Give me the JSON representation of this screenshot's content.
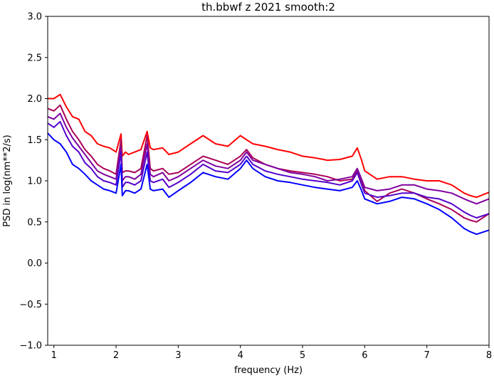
{
  "chart_data": {
    "type": "line",
    "title": "th.bbwf z 2021 smooth:2",
    "xlabel": "frequency (Hz)",
    "ylabel": "PSD in log(nm**2/s)",
    "xlim": [
      0.9,
      8.0
    ],
    "ylim": [
      -1.0,
      3.0
    ],
    "x_ticks": [
      1,
      2,
      3,
      4,
      5,
      6,
      7,
      8
    ],
    "y_ticks": [
      -1.0,
      -0.5,
      0.0,
      0.5,
      1.0,
      1.5,
      2.0,
      2.5,
      3.0
    ],
    "x_tick_labels": [
      "1",
      "2",
      "3",
      "4",
      "5",
      "6",
      "7",
      "8"
    ],
    "y_tick_labels": [
      "−1.0",
      "−0.5",
      "0.0",
      "0.5",
      "1.0",
      "1.5",
      "2.0",
      "2.5",
      "3.0"
    ],
    "grid": false,
    "legend": "none",
    "series": [
      {
        "color": "#ff0000",
        "x": [
          0.9,
          1.0,
          1.1,
          1.2,
          1.3,
          1.4,
          1.5,
          1.6,
          1.7,
          1.8,
          1.9,
          2.0,
          2.08,
          2.1,
          2.15,
          2.2,
          2.3,
          2.4,
          2.5,
          2.55,
          2.6,
          2.75,
          2.85,
          3.0,
          3.2,
          3.4,
          3.6,
          3.8,
          4.0,
          4.1,
          4.2,
          4.4,
          4.6,
          4.8,
          5.0,
          5.2,
          5.4,
          5.6,
          5.8,
          5.88,
          5.95,
          6.0,
          6.2,
          6.4,
          6.6,
          6.8,
          7.0,
          7.2,
          7.4,
          7.6,
          7.7,
          7.8,
          8.0
        ],
        "y": [
          2.0,
          2.0,
          2.05,
          1.9,
          1.78,
          1.75,
          1.6,
          1.55,
          1.45,
          1.42,
          1.4,
          1.35,
          1.57,
          1.3,
          1.35,
          1.32,
          1.35,
          1.38,
          1.6,
          1.4,
          1.38,
          1.4,
          1.32,
          1.35,
          1.45,
          1.55,
          1.45,
          1.42,
          1.55,
          1.5,
          1.45,
          1.42,
          1.38,
          1.35,
          1.3,
          1.28,
          1.25,
          1.26,
          1.3,
          1.4,
          1.25,
          1.12,
          1.02,
          1.05,
          1.05,
          1.02,
          1.0,
          1.0,
          0.95,
          0.85,
          0.82,
          0.8,
          0.86
        ]
      },
      {
        "color": "#aa0055",
        "x": [
          0.9,
          1.0,
          1.1,
          1.2,
          1.3,
          1.4,
          1.5,
          1.6,
          1.7,
          1.8,
          1.9,
          2.0,
          2.08,
          2.1,
          2.15,
          2.2,
          2.3,
          2.4,
          2.5,
          2.55,
          2.6,
          2.75,
          2.85,
          3.0,
          3.2,
          3.4,
          3.6,
          3.8,
          4.0,
          4.1,
          4.2,
          4.4,
          4.6,
          4.8,
          5.0,
          5.2,
          5.4,
          5.6,
          5.8,
          5.88,
          5.95,
          6.0,
          6.2,
          6.4,
          6.6,
          6.8,
          7.0,
          7.2,
          7.4,
          7.6,
          7.7,
          7.8,
          8.0
        ],
        "y": [
          1.88,
          1.85,
          1.92,
          1.75,
          1.6,
          1.5,
          1.38,
          1.3,
          1.2,
          1.15,
          1.12,
          1.08,
          1.5,
          1.1,
          1.12,
          1.12,
          1.1,
          1.15,
          1.55,
          1.15,
          1.12,
          1.15,
          1.08,
          1.1,
          1.2,
          1.3,
          1.25,
          1.2,
          1.3,
          1.38,
          1.28,
          1.2,
          1.15,
          1.12,
          1.1,
          1.08,
          1.05,
          1.0,
          1.02,
          1.12,
          1.0,
          0.88,
          0.75,
          0.85,
          0.9,
          0.85,
          0.78,
          0.72,
          0.65,
          0.55,
          0.52,
          0.5,
          0.6
        ]
      },
      {
        "color": "#8000a0",
        "x": [
          0.9,
          1.0,
          1.1,
          1.2,
          1.3,
          1.4,
          1.5,
          1.6,
          1.7,
          1.8,
          1.9,
          2.0,
          2.08,
          2.1,
          2.15,
          2.2,
          2.3,
          2.4,
          2.5,
          2.55,
          2.6,
          2.75,
          2.85,
          3.0,
          3.2,
          3.4,
          3.6,
          3.8,
          4.0,
          4.1,
          4.2,
          4.4,
          4.6,
          4.8,
          5.0,
          5.2,
          5.4,
          5.6,
          5.8,
          5.88,
          5.95,
          6.0,
          6.2,
          6.4,
          6.6,
          6.8,
          7.0,
          7.2,
          7.4,
          7.6,
          7.7,
          7.8,
          8.0
        ],
        "y": [
          1.78,
          1.75,
          1.82,
          1.65,
          1.52,
          1.42,
          1.32,
          1.22,
          1.12,
          1.08,
          1.05,
          1.02,
          1.42,
          1.0,
          1.05,
          1.05,
          1.02,
          1.08,
          1.45,
          1.08,
          1.05,
          1.1,
          1.0,
          1.05,
          1.15,
          1.25,
          1.18,
          1.15,
          1.25,
          1.35,
          1.25,
          1.2,
          1.15,
          1.1,
          1.08,
          1.05,
          1.0,
          1.02,
          1.05,
          1.15,
          1.02,
          0.92,
          0.88,
          0.9,
          0.95,
          0.95,
          0.9,
          0.88,
          0.85,
          0.78,
          0.75,
          0.72,
          0.78
        ]
      },
      {
        "color": "#5500cc",
        "x": [
          0.9,
          1.0,
          1.1,
          1.2,
          1.3,
          1.4,
          1.5,
          1.6,
          1.7,
          1.8,
          1.9,
          2.0,
          2.08,
          2.1,
          2.15,
          2.2,
          2.3,
          2.4,
          2.5,
          2.55,
          2.6,
          2.75,
          2.85,
          3.0,
          3.2,
          3.4,
          3.6,
          3.8,
          4.0,
          4.1,
          4.2,
          4.4,
          4.6,
          4.8,
          5.0,
          5.2,
          5.4,
          5.6,
          5.8,
          5.88,
          5.95,
          6.0,
          6.2,
          6.4,
          6.6,
          6.8,
          7.0,
          7.2,
          7.4,
          7.6,
          7.7,
          7.8,
          8.0
        ],
        "y": [
          1.7,
          1.65,
          1.72,
          1.55,
          1.42,
          1.35,
          1.22,
          1.15,
          1.05,
          1.0,
          0.98,
          0.95,
          1.35,
          0.92,
          0.98,
          0.98,
          0.95,
          1.0,
          1.35,
          1.0,
          0.98,
          1.02,
          0.92,
          0.98,
          1.08,
          1.2,
          1.12,
          1.1,
          1.2,
          1.3,
          1.2,
          1.12,
          1.08,
          1.05,
          1.02,
          1.0,
          0.98,
          0.95,
          1.0,
          1.1,
          0.95,
          0.85,
          0.8,
          0.82,
          0.85,
          0.85,
          0.8,
          0.78,
          0.72,
          0.62,
          0.58,
          0.55,
          0.6
        ]
      },
      {
        "color": "#0000ff",
        "x": [
          0.9,
          1.0,
          1.1,
          1.2,
          1.3,
          1.4,
          1.5,
          1.6,
          1.7,
          1.8,
          1.9,
          2.0,
          2.08,
          2.1,
          2.15,
          2.2,
          2.3,
          2.4,
          2.5,
          2.55,
          2.6,
          2.75,
          2.85,
          3.0,
          3.2,
          3.4,
          3.6,
          3.8,
          4.0,
          4.1,
          4.2,
          4.4,
          4.6,
          4.8,
          5.0,
          5.2,
          5.4,
          5.6,
          5.8,
          5.88,
          5.95,
          6.0,
          6.2,
          6.4,
          6.6,
          6.8,
          7.0,
          7.2,
          7.4,
          7.6,
          7.7,
          7.8,
          8.0
        ],
        "y": [
          1.58,
          1.5,
          1.45,
          1.35,
          1.2,
          1.15,
          1.08,
          1.0,
          0.95,
          0.9,
          0.88,
          0.85,
          1.2,
          0.82,
          0.88,
          0.88,
          0.85,
          0.9,
          1.2,
          0.9,
          0.88,
          0.9,
          0.8,
          0.88,
          0.98,
          1.1,
          1.05,
          1.02,
          1.15,
          1.25,
          1.15,
          1.05,
          1.0,
          0.98,
          0.95,
          0.92,
          0.9,
          0.88,
          0.92,
          1.0,
          0.88,
          0.78,
          0.72,
          0.75,
          0.8,
          0.78,
          0.72,
          0.65,
          0.55,
          0.42,
          0.38,
          0.35,
          0.4
        ]
      }
    ]
  }
}
